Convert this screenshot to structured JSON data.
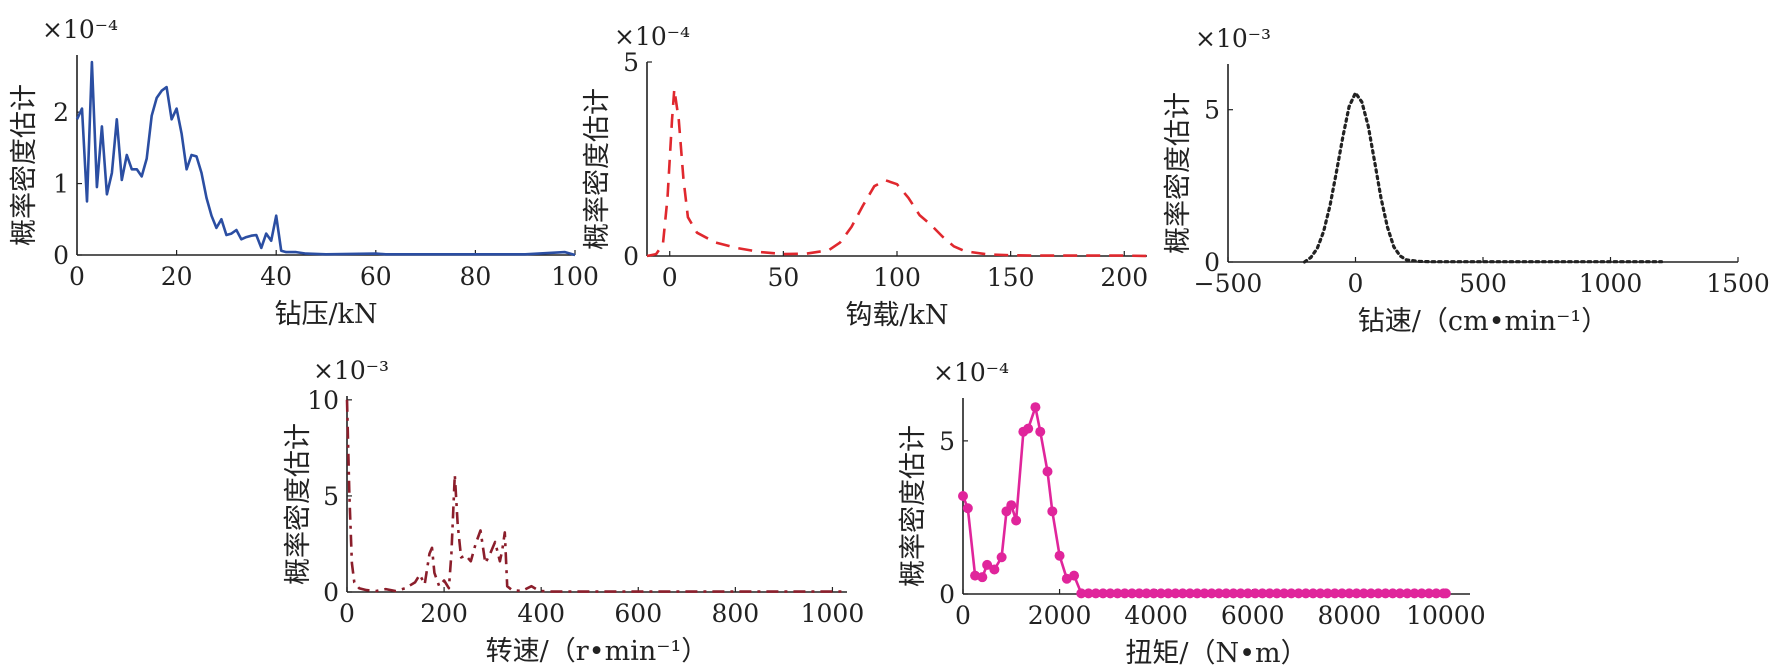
{
  "chart_data": [
    {
      "id": "bit-pressure",
      "type": "line",
      "xlabel": "钻压/kN",
      "ylabel": "概率密度估计",
      "exponent_label": "×10⁻⁴",
      "xlim": [
        0,
        100
      ],
      "ylim": [
        0,
        2.8
      ],
      "xticks": [
        0,
        20,
        40,
        60,
        80,
        100
      ],
      "yticks": [
        0,
        1,
        2
      ],
      "color": "#2b4ea2",
      "style": "solid",
      "x": [
        0,
        1,
        2,
        3,
        4,
        5,
        6,
        7,
        8,
        9,
        10,
        11,
        12,
        13,
        14,
        15,
        16,
        17,
        18,
        19,
        20,
        21,
        22,
        23,
        24,
        25,
        26,
        27,
        28,
        29,
        30,
        31,
        32,
        33,
        34,
        35,
        36,
        37,
        38,
        39,
        40,
        41,
        42,
        44,
        46,
        50,
        60,
        62,
        70,
        80,
        90,
        98,
        100
      ],
      "y": [
        1.9,
        2.05,
        0.75,
        2.7,
        0.95,
        1.8,
        0.85,
        1.15,
        1.9,
        1.05,
        1.4,
        1.2,
        1.2,
        1.1,
        1.35,
        1.95,
        2.2,
        2.3,
        2.35,
        1.9,
        2.05,
        1.7,
        1.2,
        1.4,
        1.38,
        1.15,
        0.8,
        0.55,
        0.38,
        0.5,
        0.28,
        0.3,
        0.35,
        0.22,
        0.25,
        0.27,
        0.28,
        0.1,
        0.3,
        0.2,
        0.55,
        0.06,
        0.04,
        0.04,
        0.02,
        0.01,
        0.02,
        0.01,
        0.01,
        0.01,
        0.01,
        0.04,
        0.0
      ]
    },
    {
      "id": "hook-load",
      "type": "line",
      "xlabel": "钩载/kN",
      "ylabel": "概率密度估计",
      "exponent_label": "×10⁻⁴",
      "xlim": [
        -10,
        210
      ],
      "ylim": [
        0,
        5
      ],
      "xticks": [
        0,
        50,
        100,
        150,
        200
      ],
      "yticks": [
        0,
        5
      ],
      "color": "#e0282e",
      "style": "dashed",
      "x": [
        -10,
        -6,
        -3,
        -1,
        1,
        2,
        4,
        6,
        8,
        12,
        20,
        30,
        40,
        50,
        60,
        70,
        75,
        80,
        85,
        90,
        95,
        100,
        105,
        110,
        115,
        120,
        125,
        130,
        140,
        150,
        160,
        180,
        200,
        210
      ],
      "y": [
        0,
        0.05,
        0.3,
        1.5,
        3.5,
        4.3,
        3.5,
        2.0,
        1.0,
        0.6,
        0.35,
        0.2,
        0.1,
        0.05,
        0.06,
        0.15,
        0.35,
        0.75,
        1.3,
        1.8,
        1.95,
        1.85,
        1.5,
        1.05,
        0.8,
        0.5,
        0.25,
        0.12,
        0.04,
        0.02,
        0.01,
        0.01,
        0.01,
        0.0
      ]
    },
    {
      "id": "rop",
      "type": "line",
      "xlabel": "钻速/（cm•min⁻¹）",
      "ylabel": "概率密度估计",
      "exponent_label": "×10⁻³",
      "xlim": [
        -500,
        1500
      ],
      "ylim": [
        0,
        6.5
      ],
      "xticks": [
        -500,
        0,
        500,
        1000,
        1500
      ],
      "yticks": [
        0,
        5
      ],
      "color": "#222222",
      "style": "dotted",
      "x": [
        -200,
        -175,
        -150,
        -125,
        -100,
        -75,
        -50,
        -25,
        0,
        25,
        50,
        75,
        100,
        125,
        150,
        175,
        200,
        250,
        300,
        400,
        600,
        800,
        1000,
        1200
      ],
      "y": [
        0,
        0.15,
        0.45,
        1.0,
        1.85,
        2.95,
        4.1,
        5.1,
        5.55,
        5.25,
        4.45,
        3.3,
        2.1,
        1.15,
        0.5,
        0.2,
        0.07,
        0.02,
        0.01,
        0.01,
        0.01,
        0.01,
        0.01,
        0.01
      ]
    },
    {
      "id": "rotary-speed",
      "type": "line",
      "xlabel": "转速/（r•min⁻¹）",
      "ylabel": "概率密度估计",
      "exponent_label": "×10⁻³",
      "xlim": [
        0,
        1030
      ],
      "ylim": [
        0,
        10.2
      ],
      "xticks": [
        0,
        200,
        400,
        600,
        800,
        1000
      ],
      "yticks": [
        0,
        5,
        10
      ],
      "color": "#8b1e2b",
      "style": "dashdot",
      "x": [
        0,
        5,
        10,
        15,
        25,
        40,
        60,
        80,
        100,
        120,
        140,
        150,
        160,
        170,
        175,
        180,
        190,
        200,
        210,
        215,
        222,
        228,
        235,
        245,
        255,
        265,
        275,
        285,
        295,
        305,
        315,
        320,
        325,
        330,
        340,
        360,
        380,
        390,
        400,
        420,
        500,
        600,
        700,
        800,
        900,
        1000,
        1030
      ],
      "y": [
        10.0,
        5.0,
        1.5,
        0.5,
        0.2,
        0.1,
        0.05,
        0.15,
        0.05,
        0.2,
        0.5,
        0.9,
        0.4,
        2.0,
        2.3,
        1.0,
        0.3,
        0.6,
        0.2,
        2.0,
        6.1,
        3.5,
        1.8,
        1.9,
        1.6,
        2.5,
        3.2,
        1.5,
        2.0,
        2.6,
        1.6,
        2.2,
        3.1,
        0.3,
        0.1,
        0.05,
        0.3,
        0.15,
        0.05,
        0.02,
        0.02,
        0.02,
        0.02,
        0.02,
        0.02,
        0.02,
        0.02
      ]
    },
    {
      "id": "torque",
      "type": "line",
      "xlabel": "扭矩/（N•m）",
      "ylabel": "概率密度估计",
      "exponent_label": "×10⁻⁴",
      "xlim": [
        0,
        10500
      ],
      "ylim": [
        0,
        6.4
      ],
      "xticks": [
        0,
        2000,
        4000,
        6000,
        8000,
        10000
      ],
      "yticks": [
        0,
        5
      ],
      "color": "#e0259b",
      "style": "solid-markers",
      "x": [
        0,
        100,
        250,
        400,
        500,
        650,
        800,
        900,
        1000,
        1100,
        1250,
        1350,
        1500,
        1600,
        1750,
        1850,
        2000,
        2150,
        2300,
        2450,
        2600,
        2750,
        2900,
        3050,
        3200,
        3350,
        3500,
        3650,
        3800,
        3950,
        4100,
        4250,
        4400,
        4550,
        4700,
        4850,
        5000,
        5150,
        5300,
        5450,
        5600,
        5750,
        5900,
        6050,
        6200,
        6350,
        6500,
        6650,
        6800,
        6950,
        7100,
        7250,
        7400,
        7550,
        7700,
        7850,
        8000,
        8150,
        8300,
        8450,
        8600,
        8750,
        8900,
        9050,
        9200,
        9350,
        9500,
        9650,
        9800,
        9950,
        10000
      ],
      "y": [
        3.2,
        2.8,
        0.6,
        0.55,
        0.95,
        0.8,
        1.2,
        2.7,
        2.9,
        2.4,
        5.3,
        5.4,
        6.1,
        5.3,
        4.0,
        2.7,
        1.25,
        0.5,
        0.6,
        0.02,
        0.02,
        0.02,
        0.02,
        0.02,
        0.02,
        0.02,
        0.02,
        0.02,
        0.02,
        0.02,
        0.02,
        0.02,
        0.02,
        0.02,
        0.02,
        0.02,
        0.02,
        0.02,
        0.02,
        0.02,
        0.02,
        0.02,
        0.02,
        0.02,
        0.02,
        0.02,
        0.02,
        0.02,
        0.02,
        0.02,
        0.02,
        0.02,
        0.02,
        0.02,
        0.02,
        0.02,
        0.02,
        0.02,
        0.02,
        0.02,
        0.02,
        0.02,
        0.02,
        0.02,
        0.02,
        0.02,
        0.02,
        0.02,
        0.02,
        0.02,
        0.02
      ]
    }
  ]
}
